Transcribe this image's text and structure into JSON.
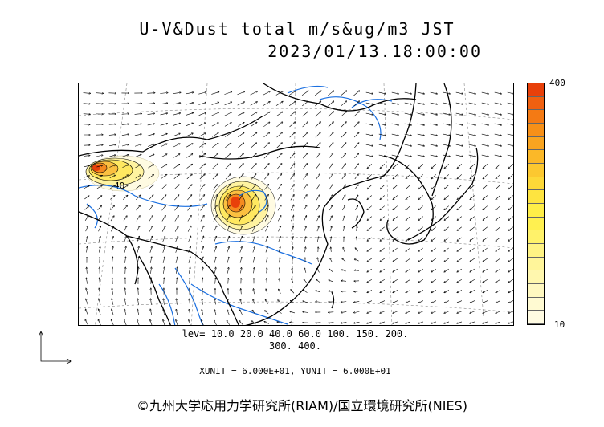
{
  "header": {
    "title_line1": "U-V&Dust total m/s&ug/m3 JST",
    "title_line2": "2023/01/13.18:00:00"
  },
  "colorbar": {
    "max_label": "400",
    "min_label": "10",
    "colors": [
      "#e8400a",
      "#f06010",
      "#f47a14",
      "#f79018",
      "#f9a420",
      "#fbb828",
      "#fcc830",
      "#fdd838",
      "#fee440",
      "#ffee48",
      "#fff050",
      "#fff26a",
      "#fff384",
      "#fff59a",
      "#fff7ae",
      "#fff8c0",
      "#fffad2",
      "#fffbe2"
    ]
  },
  "contour_levels": {
    "line1": "lev= 10.0 20.0 40.0 60.0 100. 150. 200.",
    "line2": "300. 400."
  },
  "units_text": "XUNIT = 6.000E+01, YUNIT = 6.000E+01",
  "map": {
    "contour_label_west": "40",
    "colors": {
      "coast": "#000000",
      "river": "#1a6fe0",
      "grid": "#888888",
      "vector": "#000000"
    },
    "plumes": [
      {
        "name": "west-plume",
        "peak": 400
      },
      {
        "name": "central-plume",
        "peak": 400
      }
    ]
  },
  "credit": "©九州大学応用力学研究所(RIAM)/国立環境研究所(NIES)"
}
